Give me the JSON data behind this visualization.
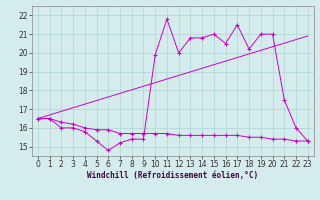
{
  "title": "",
  "xlabel": "Windchill (Refroidissement éolien,°C)",
  "bg_color": "#d4ecec",
  "line_color": "#cc00cc",
  "ylim": [
    14.5,
    22.5
  ],
  "xlim": [
    -0.5,
    23.5
  ],
  "yticks": [
    15,
    16,
    17,
    18,
    19,
    20,
    21,
    22
  ],
  "xticks": [
    0,
    1,
    2,
    3,
    4,
    5,
    6,
    7,
    8,
    9,
    10,
    11,
    12,
    13,
    14,
    15,
    16,
    17,
    18,
    19,
    20,
    21,
    22,
    23
  ],
  "series1_x": [
    0,
    1,
    2,
    3,
    4,
    5,
    6,
    7,
    8,
    9,
    10,
    11,
    12,
    13,
    14,
    15,
    16,
    17,
    18,
    19,
    20,
    21,
    22,
    23
  ],
  "series1_y": [
    16.5,
    16.5,
    16.0,
    16.0,
    15.8,
    15.3,
    14.8,
    15.2,
    15.4,
    15.4,
    19.9,
    21.8,
    20.0,
    20.8,
    20.8,
    21.0,
    20.5,
    21.5,
    20.2,
    21.0,
    21.0,
    17.5,
    16.0,
    15.3
  ],
  "series2_x": [
    0,
    23
  ],
  "series2_y": [
    16.5,
    20.9
  ],
  "series3_x": [
    0,
    1,
    2,
    3,
    4,
    5,
    6,
    7,
    8,
    9,
    10,
    11,
    12,
    13,
    14,
    15,
    16,
    17,
    18,
    19,
    20,
    21,
    22,
    23
  ],
  "series3_y": [
    16.5,
    16.5,
    16.3,
    16.2,
    16.0,
    15.9,
    15.9,
    15.7,
    15.7,
    15.7,
    15.7,
    15.7,
    15.6,
    15.6,
    15.6,
    15.6,
    15.6,
    15.6,
    15.5,
    15.5,
    15.4,
    15.4,
    15.3,
    15.3
  ],
  "grid_color": "#b0d4d4",
  "tick_fontsize": 5.5,
  "xlabel_fontsize": 5.5
}
